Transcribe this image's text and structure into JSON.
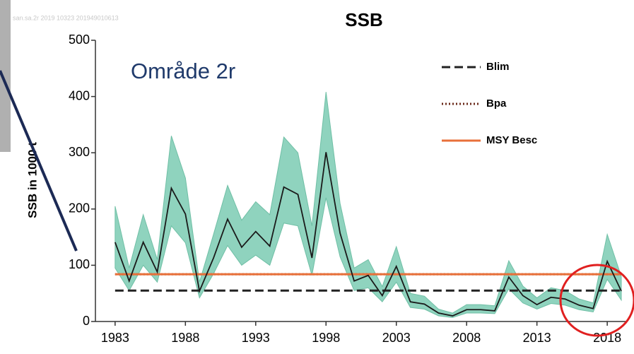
{
  "chart_data": {
    "type": "line",
    "title": "SSB",
    "subtitle": "san.sa.2r 2019 10323 201949010613",
    "annotation": "Område 2r",
    "y_label": "SSB in 1000 t",
    "x": [
      1983,
      1984,
      1985,
      1986,
      1987,
      1988,
      1989,
      1990,
      1991,
      1992,
      1993,
      1994,
      1995,
      1996,
      1997,
      1998,
      1999,
      2000,
      2001,
      2002,
      2003,
      2004,
      2005,
      2006,
      2007,
      2008,
      2009,
      2010,
      2011,
      2012,
      2013,
      2014,
      2015,
      2016,
      2017,
      2018,
      2019
    ],
    "series": [
      {
        "name": "SSB",
        "color": "#1a1a1a",
        "values": [
          141,
          72,
          141,
          88,
          237,
          191,
          54,
          113,
          182,
          132,
          160,
          134,
          239,
          226,
          113,
          301,
          157,
          72,
          82,
          46,
          98,
          35,
          31,
          15,
          10,
          21,
          21,
          19,
          79,
          46,
          30,
          43,
          40,
          29,
          23,
          107,
          54
        ]
      }
    ],
    "band": {
      "color": "#8fd3be",
      "upper": [
        205,
        95,
        190,
        110,
        330,
        255,
        70,
        155,
        242,
        180,
        213,
        190,
        328,
        300,
        170,
        408,
        210,
        95,
        110,
        62,
        133,
        50,
        45,
        22,
        15,
        30,
        30,
        28,
        108,
        63,
        42,
        60,
        55,
        40,
        33,
        155,
        80
      ],
      "lower": [
        95,
        55,
        100,
        70,
        170,
        140,
        42,
        85,
        135,
        100,
        118,
        100,
        175,
        170,
        82,
        220,
        115,
        55,
        60,
        35,
        70,
        25,
        22,
        10,
        7,
        15,
        15,
        14,
        58,
        33,
        22,
        32,
        29,
        21,
        17,
        75,
        38
      ]
    },
    "reference_lines": [
      {
        "name": "Blim",
        "value": 55,
        "color": "#222222",
        "style": "dashed"
      },
      {
        "name": "Bpa",
        "value": 84,
        "color": "#6b2a1a",
        "style": "dotted"
      },
      {
        "name": "MSY Besc",
        "value": 84,
        "color": "#e8703a",
        "style": "solid"
      }
    ],
    "legend": "upper right",
    "xlim": [
      1981.6,
      2019.3
    ],
    "xticks": [
      1983,
      1988,
      1993,
      1998,
      2003,
      2008,
      2013,
      2018
    ],
    "ylim": [
      0,
      500
    ],
    "yticks": [
      0,
      100,
      200,
      300,
      400,
      500
    ]
  }
}
